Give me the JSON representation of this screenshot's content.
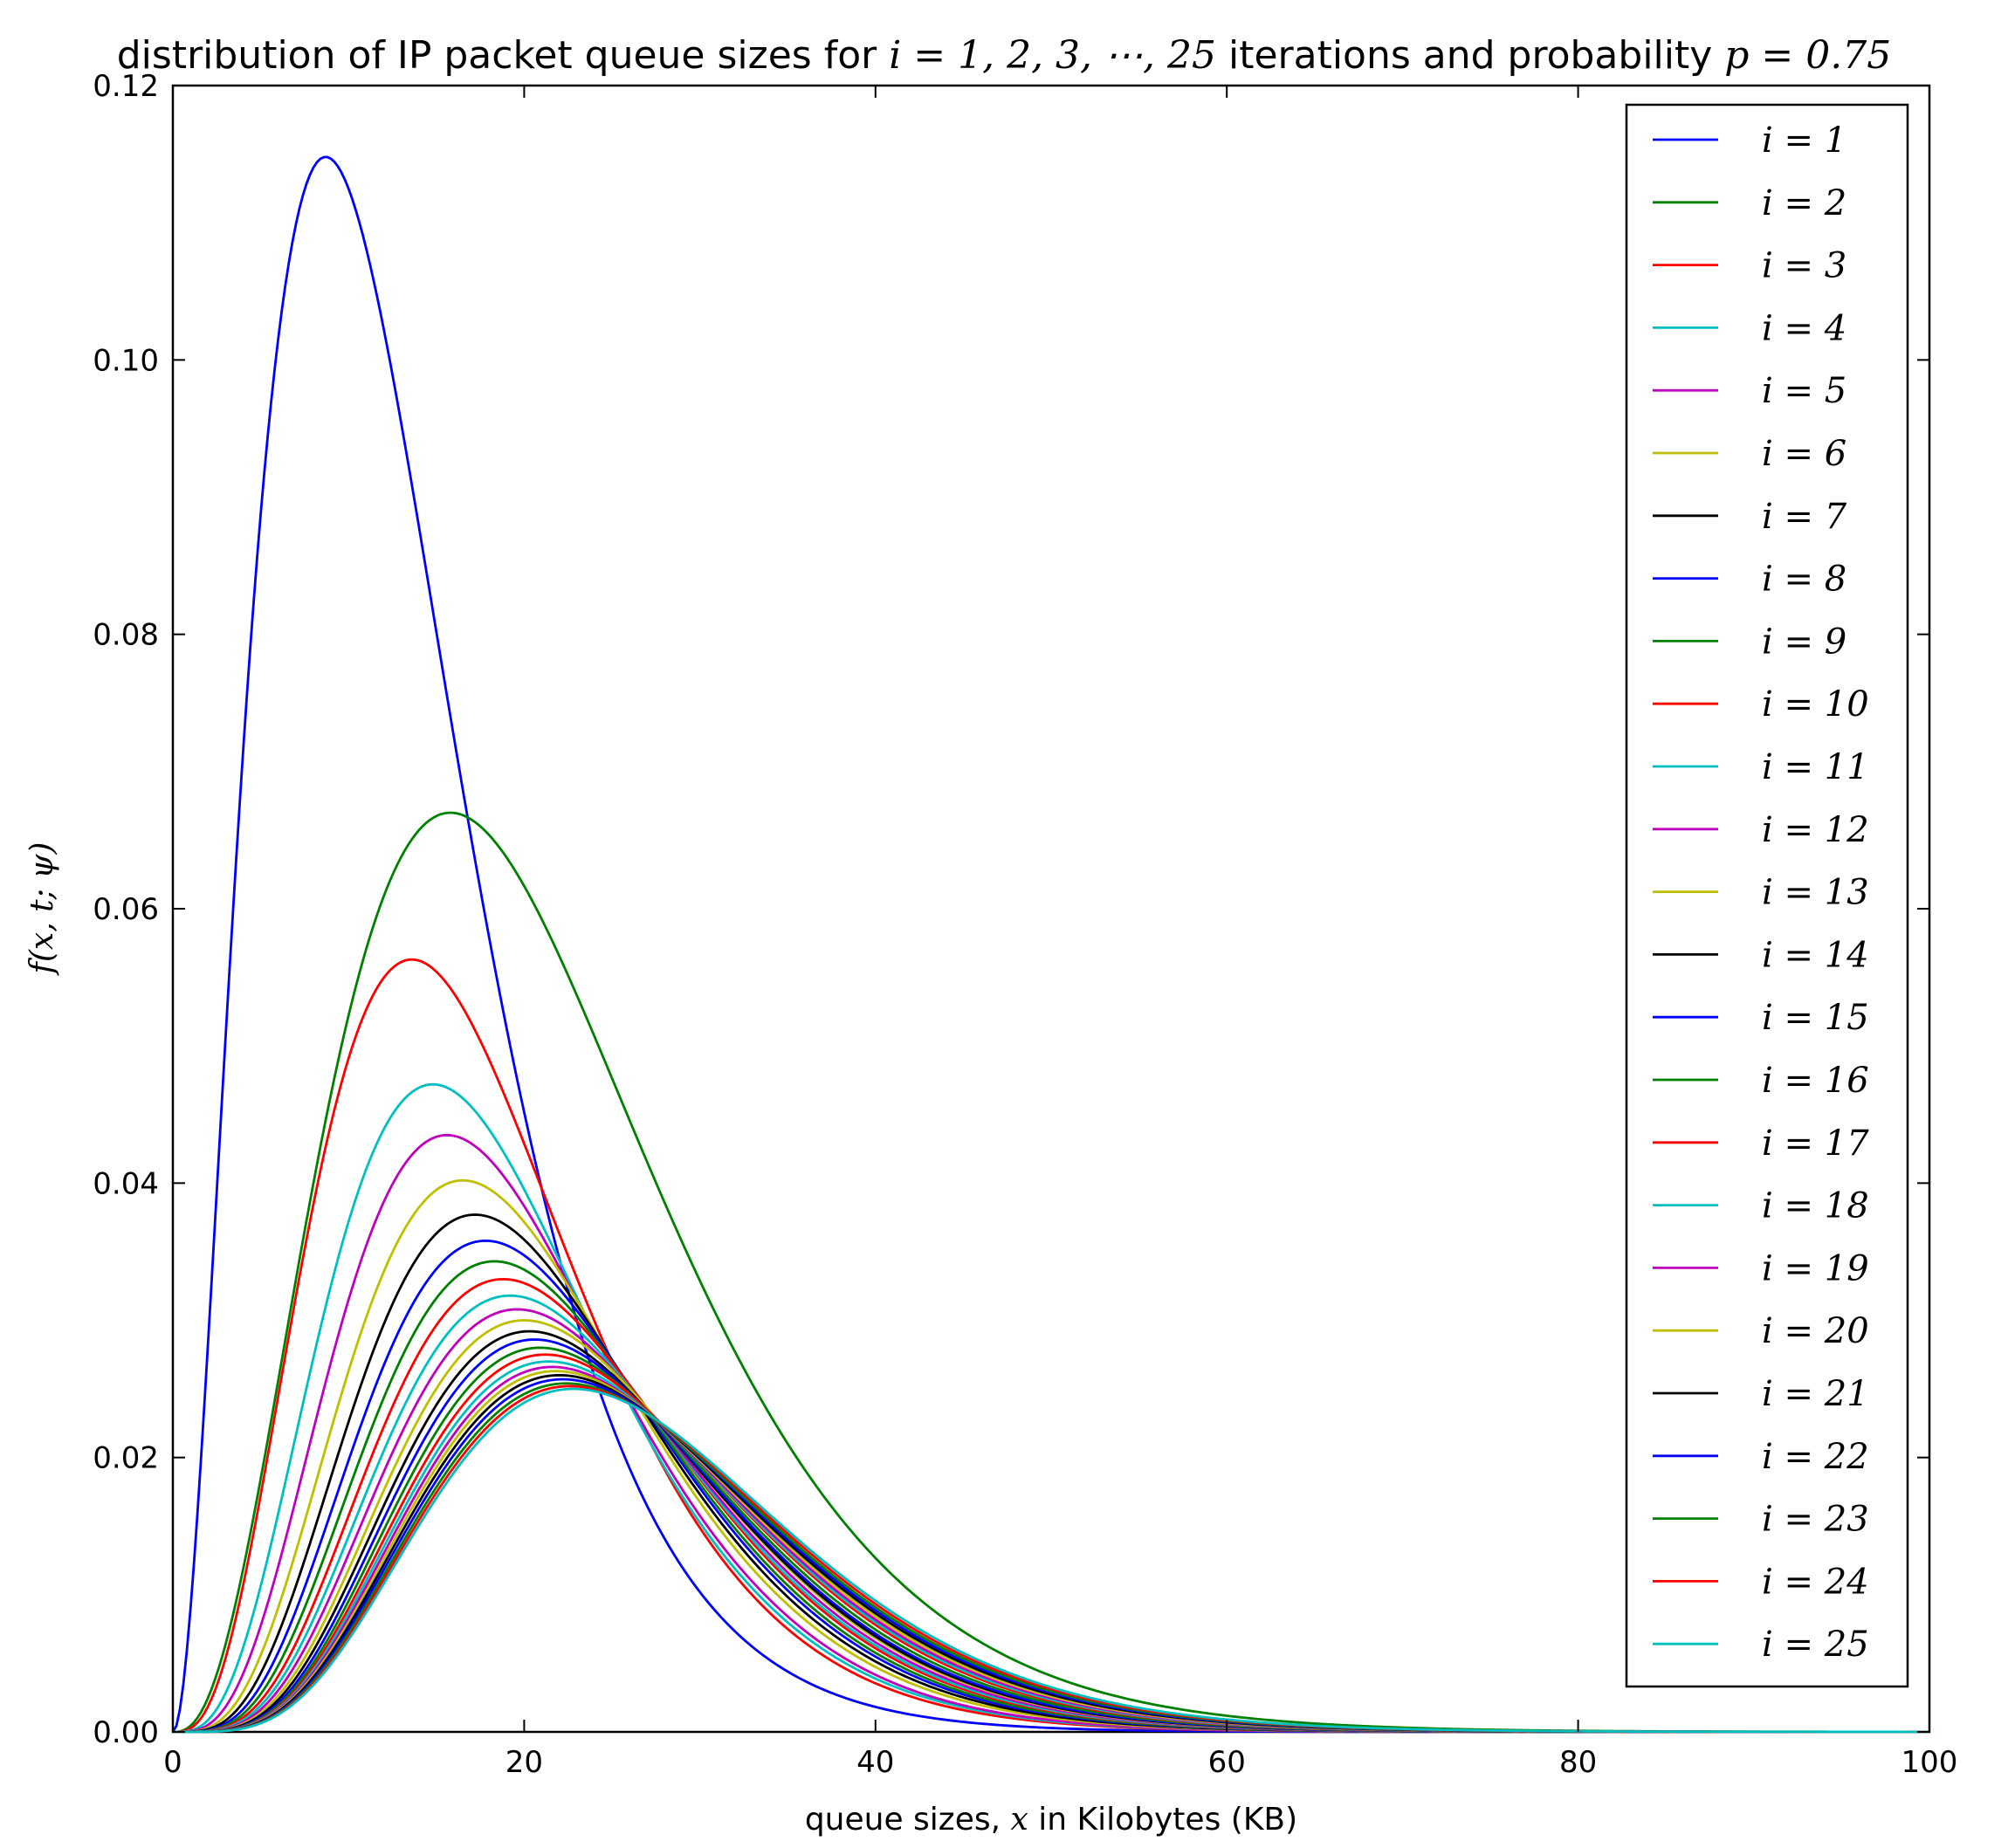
{
  "chart_data": {
    "type": "line",
    "title": {
      "before": "distribution of IP packet queue sizes  for ",
      "math1": "i = 1, 2, 3, ⋯, 25",
      "middle": " iterations and probability ",
      "math2": "p = 0.75"
    },
    "xlabel": {
      "before": "queue sizes, ",
      "math": "x",
      "after": " in Kilobytes (KB)"
    },
    "ylabel": "f(x, t; ψ)",
    "xlim": [
      0,
      100
    ],
    "ylim": [
      0,
      0.12
    ],
    "xticks": [
      0,
      20,
      40,
      60,
      80,
      100
    ],
    "xtick_labels": [
      "0",
      "20",
      "40",
      "60",
      "80",
      "100"
    ],
    "yticks": [
      0,
      0.02,
      0.04,
      0.06,
      0.08,
      0.1,
      0.12
    ],
    "ytick_labels": [
      "0.00",
      "0.02",
      "0.04",
      "0.06",
      "0.08",
      "0.10",
      "0.12"
    ],
    "grid": false,
    "legend_position": "top-right",
    "colors": [
      "#0000ff",
      "#008000",
      "#ff0000",
      "#00bfbf",
      "#bf00bf",
      "#bfbf00",
      "#000000"
    ],
    "series": [
      {
        "name": "i = 1",
        "color": "#0000ff",
        "peak_x": 8.7,
        "peak_y": 0.1148
      },
      {
        "name": "i = 2",
        "color": "#008000",
        "peak_x": 15.8,
        "peak_y": 0.067
      },
      {
        "name": "i = 3",
        "color": "#ff0000",
        "peak_x": 13.6,
        "peak_y": 0.0563
      },
      {
        "name": "i = 4",
        "color": "#00bfbf",
        "peak_x": 14.8,
        "peak_y": 0.0472
      },
      {
        "name": "i = 5",
        "color": "#bf00bf",
        "peak_x": 15.6,
        "peak_y": 0.0435
      },
      {
        "name": "i = 6",
        "color": "#bfbf00",
        "peak_x": 16.5,
        "peak_y": 0.0402
      },
      {
        "name": "i = 7",
        "color": "#000000",
        "peak_x": 17.2,
        "peak_y": 0.0377
      },
      {
        "name": "i = 8",
        "color": "#0000ff",
        "peak_x": 17.8,
        "peak_y": 0.0358
      },
      {
        "name": "i = 9",
        "color": "#008000",
        "peak_x": 18.3,
        "peak_y": 0.0343
      },
      {
        "name": "i = 10",
        "color": "#ff0000",
        "peak_x": 18.8,
        "peak_y": 0.033
      },
      {
        "name": "i = 11",
        "color": "#00bfbf",
        "peak_x": 19.2,
        "peak_y": 0.0318
      },
      {
        "name": "i = 12",
        "color": "#bf00bf",
        "peak_x": 19.6,
        "peak_y": 0.0308
      },
      {
        "name": "i = 13",
        "color": "#bfbf00",
        "peak_x": 20.0,
        "peak_y": 0.03
      },
      {
        "name": "i = 14",
        "color": "#000000",
        "peak_x": 20.3,
        "peak_y": 0.0292
      },
      {
        "name": "i = 15",
        "color": "#0000ff",
        "peak_x": 20.6,
        "peak_y": 0.0286
      },
      {
        "name": "i = 16",
        "color": "#008000",
        "peak_x": 20.9,
        "peak_y": 0.028
      },
      {
        "name": "i = 17",
        "color": "#ff0000",
        "peak_x": 21.2,
        "peak_y": 0.0275
      },
      {
        "name": "i = 18",
        "color": "#00bfbf",
        "peak_x": 21.4,
        "peak_y": 0.027
      },
      {
        "name": "i = 19",
        "color": "#bf00bf",
        "peak_x": 21.6,
        "peak_y": 0.0266
      },
      {
        "name": "i = 20",
        "color": "#bfbf00",
        "peak_x": 21.8,
        "peak_y": 0.0263
      },
      {
        "name": "i = 21",
        "color": "#000000",
        "peak_x": 22.0,
        "peak_y": 0.026
      },
      {
        "name": "i = 22",
        "color": "#0000ff",
        "peak_x": 22.2,
        "peak_y": 0.0257
      },
      {
        "name": "i = 23",
        "color": "#008000",
        "peak_x": 22.4,
        "peak_y": 0.0254
      },
      {
        "name": "i = 24",
        "color": "#ff0000",
        "peak_x": 22.6,
        "peak_y": 0.0252
      },
      {
        "name": "i = 25",
        "color": "#00bfbf",
        "peak_x": 22.8,
        "peak_y": 0.025
      }
    ]
  }
}
